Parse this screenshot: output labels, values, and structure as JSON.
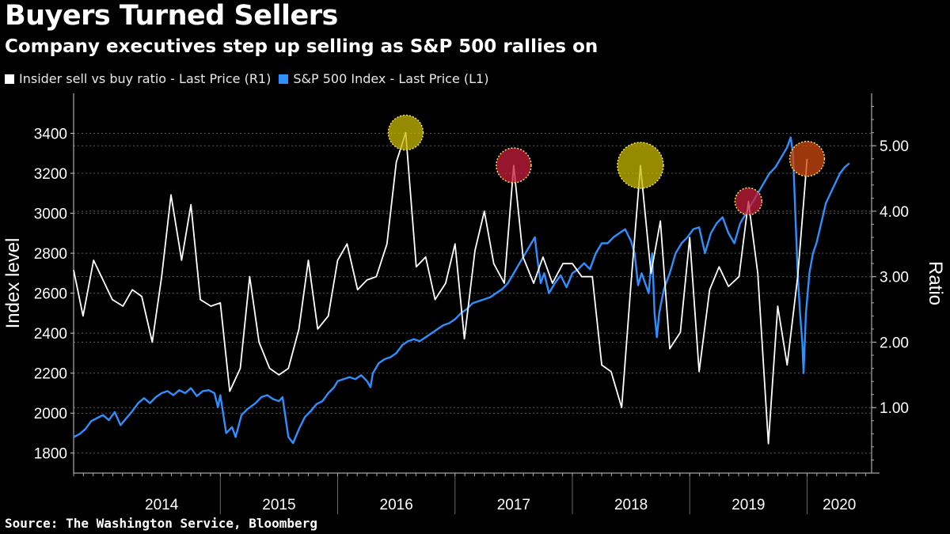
{
  "title": "Buyers Turned Sellers",
  "subtitle": "Company executives step up selling as S&P 500 rallies on",
  "source": "Source: The Washington Service, Bloomberg",
  "legend": [
    {
      "label": "Insider sell vs buy ratio - Last Price (R1)",
      "color": "#ffffff"
    },
    {
      "label": "S&P 500 Index - Last Price (L1)",
      "color": "#2f8fff"
    }
  ],
  "chart_data": {
    "type": "line",
    "title": "Buyers Turned Sellers",
    "subtitle": "Company executives step up selling as S&P 500 rallies on",
    "ylabel_left": "Index level",
    "ylabel_right": "Ratio",
    "ylim_left": [
      1700,
      3600
    ],
    "ylim_right": [
      0,
      5.8
    ],
    "yticks_left": [
      "1800",
      "2000",
      "2200",
      "2400",
      "2600",
      "2800",
      "3000",
      "3200",
      "3400"
    ],
    "yticks_right": [
      "1.00",
      "2.00",
      "3.00",
      "4.00",
      "5.00"
    ],
    "x_range": [
      2013.75,
      2020.55
    ],
    "x_years": [
      "2014",
      "2015",
      "2016",
      "2017",
      "2018",
      "2019",
      "2020"
    ],
    "grid": true,
    "series": [
      {
        "name": "S&P 500 Index - Last Price (L1)",
        "axis": "left",
        "color": "#2f8fff",
        "points": [
          [
            2013.75,
            1880
          ],
          [
            2013.8,
            1895
          ],
          [
            2013.85,
            1920
          ],
          [
            2013.9,
            1960
          ],
          [
            2013.95,
            1975
          ],
          [
            2014.0,
            1990
          ],
          [
            2014.05,
            1965
          ],
          [
            2014.1,
            2005
          ],
          [
            2014.15,
            1940
          ],
          [
            2014.2,
            1975
          ],
          [
            2014.25,
            2010
          ],
          [
            2014.3,
            2050
          ],
          [
            2014.35,
            2075
          ],
          [
            2014.4,
            2050
          ],
          [
            2014.45,
            2080
          ],
          [
            2014.5,
            2100
          ],
          [
            2014.55,
            2110
          ],
          [
            2014.6,
            2090
          ],
          [
            2014.65,
            2115
          ],
          [
            2014.7,
            2100
          ],
          [
            2014.75,
            2125
          ],
          [
            2014.8,
            2085
          ],
          [
            2014.85,
            2110
          ],
          [
            2014.9,
            2115
          ],
          [
            2014.95,
            2100
          ],
          [
            2014.98,
            2030
          ],
          [
            2015.0,
            2090
          ],
          [
            2015.05,
            1900
          ],
          [
            2015.1,
            1930
          ],
          [
            2015.13,
            1880
          ],
          [
            2015.18,
            1990
          ],
          [
            2015.23,
            2020
          ],
          [
            2015.3,
            2050
          ],
          [
            2015.35,
            2080
          ],
          [
            2015.4,
            2090
          ],
          [
            2015.45,
            2070
          ],
          [
            2015.5,
            2060
          ],
          [
            2015.53,
            2080
          ],
          [
            2015.58,
            1880
          ],
          [
            2015.62,
            1850
          ],
          [
            2015.67,
            1920
          ],
          [
            2015.72,
            1980
          ],
          [
            2015.77,
            2010
          ],
          [
            2015.82,
            2045
          ],
          [
            2015.87,
            2060
          ],
          [
            2015.92,
            2100
          ],
          [
            2015.97,
            2130
          ],
          [
            2016.0,
            2160
          ],
          [
            2016.05,
            2170
          ],
          [
            2016.1,
            2180
          ],
          [
            2016.15,
            2170
          ],
          [
            2016.2,
            2190
          ],
          [
            2016.25,
            2160
          ],
          [
            2016.28,
            2130
          ],
          [
            2016.3,
            2200
          ],
          [
            2016.35,
            2250
          ],
          [
            2016.4,
            2270
          ],
          [
            2016.45,
            2280
          ],
          [
            2016.5,
            2300
          ],
          [
            2016.55,
            2340
          ],
          [
            2016.6,
            2360
          ],
          [
            2016.65,
            2370
          ],
          [
            2016.7,
            2360
          ],
          [
            2016.75,
            2380
          ],
          [
            2016.8,
            2400
          ],
          [
            2016.85,
            2420
          ],
          [
            2016.9,
            2440
          ],
          [
            2016.95,
            2450
          ],
          [
            2017.0,
            2470
          ],
          [
            2017.05,
            2500
          ],
          [
            2017.1,
            2520
          ],
          [
            2017.15,
            2550
          ],
          [
            2017.2,
            2560
          ],
          [
            2017.25,
            2570
          ],
          [
            2017.3,
            2580
          ],
          [
            2017.35,
            2600
          ],
          [
            2017.4,
            2620
          ],
          [
            2017.45,
            2650
          ],
          [
            2017.5,
            2700
          ],
          [
            2017.55,
            2750
          ],
          [
            2017.6,
            2800
          ],
          [
            2017.65,
            2850
          ],
          [
            2017.68,
            2880
          ],
          [
            2017.7,
            2780
          ],
          [
            2017.73,
            2650
          ],
          [
            2017.76,
            2700
          ],
          [
            2017.8,
            2600
          ],
          [
            2017.85,
            2650
          ],
          [
            2017.9,
            2690
          ],
          [
            2017.95,
            2630
          ],
          [
            2018.0,
            2700
          ],
          [
            2018.05,
            2720
          ],
          [
            2018.1,
            2750
          ],
          [
            2018.15,
            2720
          ],
          [
            2018.2,
            2800
          ],
          [
            2018.25,
            2850
          ],
          [
            2018.3,
            2850
          ],
          [
            2018.35,
            2880
          ],
          [
            2018.4,
            2900
          ],
          [
            2018.45,
            2920
          ],
          [
            2018.5,
            2860
          ],
          [
            2018.53,
            2800
          ],
          [
            2018.56,
            2640
          ],
          [
            2018.59,
            2700
          ],
          [
            2018.62,
            2650
          ],
          [
            2018.65,
            2600
          ],
          [
            2018.68,
            2800
          ],
          [
            2018.7,
            2500
          ],
          [
            2018.72,
            2380
          ],
          [
            2018.74,
            2500
          ],
          [
            2018.78,
            2620
          ],
          [
            2018.83,
            2700
          ],
          [
            2018.88,
            2800
          ],
          [
            2018.93,
            2850
          ],
          [
            2018.98,
            2880
          ],
          [
            2019.03,
            2920
          ],
          [
            2019.08,
            2930
          ],
          [
            2019.13,
            2800
          ],
          [
            2019.18,
            2900
          ],
          [
            2019.23,
            2950
          ],
          [
            2019.28,
            2980
          ],
          [
            2019.33,
            2900
          ],
          [
            2019.38,
            2850
          ],
          [
            2019.43,
            2950
          ],
          [
            2019.48,
            3000
          ],
          [
            2019.53,
            3050
          ],
          [
            2019.58,
            3100
          ],
          [
            2019.63,
            3150
          ],
          [
            2019.68,
            3200
          ],
          [
            2019.73,
            3230
          ],
          [
            2019.78,
            3280
          ],
          [
            2019.83,
            3330
          ],
          [
            2019.86,
            3380
          ],
          [
            2019.88,
            3300
          ],
          [
            2019.9,
            3000
          ],
          [
            2019.92,
            2700
          ],
          [
            2019.94,
            2500
          ],
          [
            2019.96,
            2350
          ],
          [
            2019.97,
            2200
          ],
          [
            2019.99,
            2500
          ],
          [
            2020.02,
            2700
          ],
          [
            2020.05,
            2800
          ],
          [
            2020.08,
            2850
          ],
          [
            2020.12,
            2950
          ],
          [
            2020.16,
            3050
          ],
          [
            2020.2,
            3100
          ],
          [
            2020.24,
            3150
          ],
          [
            2020.28,
            3200
          ],
          [
            2020.32,
            3230
          ],
          [
            2020.36,
            3250
          ]
        ]
      },
      {
        "name": "Insider sell vs buy ratio - Last Price (R1)",
        "axis": "right",
        "color": "#ffffff",
        "points": [
          [
            2013.75,
            3.1
          ],
          [
            2013.83,
            2.4
          ],
          [
            2013.92,
            3.25
          ],
          [
            2014.0,
            2.95
          ],
          [
            2014.08,
            2.65
          ],
          [
            2014.17,
            2.55
          ],
          [
            2014.25,
            2.8
          ],
          [
            2014.33,
            2.7
          ],
          [
            2014.42,
            2.0
          ],
          [
            2014.5,
            3.0
          ],
          [
            2014.58,
            4.25
          ],
          [
            2014.67,
            3.25
          ],
          [
            2014.75,
            4.1
          ],
          [
            2014.83,
            2.65
          ],
          [
            2014.92,
            2.55
          ],
          [
            2015.0,
            2.6
          ],
          [
            2015.08,
            1.25
          ],
          [
            2015.17,
            1.6
          ],
          [
            2015.25,
            3.0
          ],
          [
            2015.33,
            2.0
          ],
          [
            2015.42,
            1.6
          ],
          [
            2015.5,
            1.5
          ],
          [
            2015.58,
            1.6
          ],
          [
            2015.67,
            2.2
          ],
          [
            2015.75,
            3.25
          ],
          [
            2015.83,
            2.2
          ],
          [
            2015.92,
            2.4
          ],
          [
            2016.0,
            3.25
          ],
          [
            2016.08,
            3.5
          ],
          [
            2016.17,
            2.8
          ],
          [
            2016.25,
            2.95
          ],
          [
            2016.33,
            3.0
          ],
          [
            2016.42,
            3.5
          ],
          [
            2016.5,
            4.75
          ],
          [
            2016.58,
            5.2
          ],
          [
            2016.67,
            3.15
          ],
          [
            2016.75,
            3.3
          ],
          [
            2016.83,
            2.65
          ],
          [
            2016.92,
            2.9
          ],
          [
            2017.0,
            3.5
          ],
          [
            2017.08,
            2.05
          ],
          [
            2017.17,
            3.4
          ],
          [
            2017.25,
            4.0
          ],
          [
            2017.33,
            3.2
          ],
          [
            2017.42,
            2.9
          ],
          [
            2017.5,
            4.7
          ],
          [
            2017.58,
            3.3
          ],
          [
            2017.67,
            2.9
          ],
          [
            2017.75,
            3.3
          ],
          [
            2017.83,
            2.9
          ],
          [
            2017.92,
            3.2
          ],
          [
            2018.0,
            3.2
          ],
          [
            2018.08,
            3.0
          ],
          [
            2018.17,
            3.0
          ],
          [
            2018.25,
            1.65
          ],
          [
            2018.33,
            1.55
          ],
          [
            2018.42,
            1.0
          ],
          [
            2018.5,
            2.9
          ],
          [
            2018.58,
            4.7
          ],
          [
            2018.67,
            3.05
          ],
          [
            2018.75,
            3.85
          ],
          [
            2018.83,
            1.9
          ],
          [
            2018.92,
            2.15
          ],
          [
            2019.0,
            3.6
          ],
          [
            2019.08,
            1.55
          ],
          [
            2019.17,
            2.8
          ],
          [
            2019.25,
            3.15
          ],
          [
            2019.33,
            2.85
          ],
          [
            2019.42,
            3.0
          ],
          [
            2019.5,
            4.15
          ],
          [
            2019.58,
            3.05
          ],
          [
            2019.67,
            0.45
          ],
          [
            2019.75,
            2.55
          ],
          [
            2019.83,
            1.65
          ],
          [
            2019.92,
            3.0
          ],
          [
            2020.0,
            4.8
          ]
        ]
      }
    ],
    "highlights": [
      {
        "x": 2016.58,
        "y": 5.2,
        "color": "#c8b800"
      },
      {
        "x": 2017.5,
        "y": 4.7,
        "color": "#c81e3c"
      },
      {
        "x": 2018.58,
        "y": 4.7,
        "color": "#c8b800"
      },
      {
        "x": 2019.5,
        "y": 4.15,
        "color": "#c81e3c"
      },
      {
        "x": 2020.0,
        "y": 4.8,
        "color": "#d04a10"
      }
    ]
  }
}
